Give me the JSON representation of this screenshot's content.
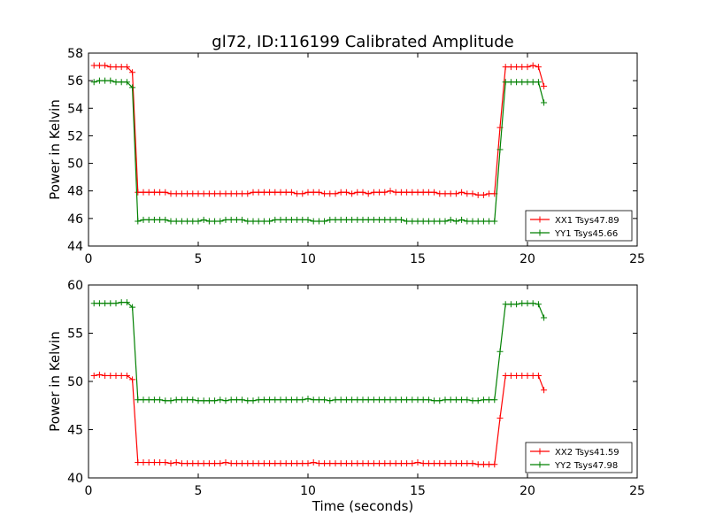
{
  "chart_data": [
    {
      "type": "line",
      "title": "gl72, ID:116199 Calibrated Amplitude",
      "xlabel": "",
      "ylabel": "Power in Kelvin",
      "xlim": [
        0,
        25
      ],
      "ylim": [
        44,
        58
      ],
      "xticks": [
        "0",
        "5",
        "10",
        "15",
        "20",
        "25"
      ],
      "yticks": [
        "44",
        "46",
        "48",
        "50",
        "52",
        "54",
        "56",
        "58"
      ],
      "legend_position": "lower-right",
      "grid": false,
      "x": [
        0.25,
        0.5,
        0.75,
        1.0,
        1.25,
        1.5,
        1.75,
        2.0,
        2.25,
        2.5,
        2.75,
        3.0,
        3.25,
        3.5,
        3.75,
        4.0,
        4.25,
        4.5,
        4.75,
        5.0,
        5.25,
        5.5,
        5.75,
        6.0,
        6.25,
        6.5,
        6.75,
        7.0,
        7.25,
        7.5,
        7.75,
        8.0,
        8.25,
        8.5,
        8.75,
        9.0,
        9.25,
        9.5,
        9.75,
        10.0,
        10.25,
        10.5,
        10.75,
        11.0,
        11.25,
        11.5,
        11.75,
        12.0,
        12.25,
        12.5,
        12.75,
        13.0,
        13.25,
        13.5,
        13.75,
        14.0,
        14.25,
        14.5,
        14.75,
        15.0,
        15.25,
        15.5,
        15.75,
        16.0,
        16.25,
        16.5,
        16.75,
        17.0,
        17.25,
        17.5,
        17.75,
        18.0,
        18.25,
        18.5,
        18.75,
        19.0,
        19.25,
        19.5,
        19.75,
        20.0,
        20.25,
        20.5,
        20.75
      ],
      "series": [
        {
          "name": "XX1 Tsys47.89",
          "color": "#ff0000",
          "values": [
            57.1,
            57.1,
            57.1,
            57.0,
            57.0,
            57.0,
            57.0,
            56.6,
            47.9,
            47.9,
            47.9,
            47.9,
            47.9,
            47.9,
            47.8,
            47.8,
            47.8,
            47.8,
            47.8,
            47.8,
            47.8,
            47.8,
            47.8,
            47.8,
            47.8,
            47.8,
            47.8,
            47.8,
            47.8,
            47.9,
            47.9,
            47.9,
            47.9,
            47.9,
            47.9,
            47.9,
            47.9,
            47.8,
            47.8,
            47.9,
            47.9,
            47.9,
            47.8,
            47.8,
            47.8,
            47.9,
            47.9,
            47.8,
            47.9,
            47.9,
            47.8,
            47.9,
            47.9,
            47.9,
            48.0,
            47.9,
            47.9,
            47.9,
            47.9,
            47.9,
            47.9,
            47.9,
            47.9,
            47.8,
            47.8,
            47.8,
            47.8,
            47.9,
            47.8,
            47.8,
            47.7,
            47.7,
            47.8,
            47.8,
            52.6,
            57.0,
            57.0,
            57.0,
            57.0,
            57.0,
            57.1,
            57.0,
            55.6
          ]
        },
        {
          "name": "YY1 Tsys45.66",
          "color": "#008000",
          "values": [
            55.9,
            56.0,
            56.0,
            56.0,
            55.9,
            55.9,
            55.9,
            55.5,
            45.8,
            45.9,
            45.9,
            45.9,
            45.9,
            45.9,
            45.8,
            45.8,
            45.8,
            45.8,
            45.8,
            45.8,
            45.9,
            45.8,
            45.8,
            45.8,
            45.9,
            45.9,
            45.9,
            45.9,
            45.8,
            45.8,
            45.8,
            45.8,
            45.8,
            45.9,
            45.9,
            45.9,
            45.9,
            45.9,
            45.9,
            45.9,
            45.8,
            45.8,
            45.8,
            45.9,
            45.9,
            45.9,
            45.9,
            45.9,
            45.9,
            45.9,
            45.9,
            45.9,
            45.9,
            45.9,
            45.9,
            45.9,
            45.9,
            45.8,
            45.8,
            45.8,
            45.8,
            45.8,
            45.8,
            45.8,
            45.8,
            45.9,
            45.8,
            45.9,
            45.8,
            45.8,
            45.8,
            45.8,
            45.8,
            45.8,
            51.0,
            55.9,
            55.9,
            55.9,
            55.9,
            55.9,
            55.9,
            55.9,
            54.4
          ]
        }
      ]
    },
    {
      "type": "line",
      "title": "",
      "xlabel": "Time (seconds)",
      "ylabel": "Power in Kelvin",
      "xlim": [
        0,
        25
      ],
      "ylim": [
        40,
        60
      ],
      "xticks": [
        "0",
        "5",
        "10",
        "15",
        "20",
        "25"
      ],
      "yticks": [
        "40",
        "45",
        "50",
        "55",
        "60"
      ],
      "legend_position": "lower-right",
      "grid": false,
      "x": [
        0.25,
        0.5,
        0.75,
        1.0,
        1.25,
        1.5,
        1.75,
        2.0,
        2.25,
        2.5,
        2.75,
        3.0,
        3.25,
        3.5,
        3.75,
        4.0,
        4.25,
        4.5,
        4.75,
        5.0,
        5.25,
        5.5,
        5.75,
        6.0,
        6.25,
        6.5,
        6.75,
        7.0,
        7.25,
        7.5,
        7.75,
        8.0,
        8.25,
        8.5,
        8.75,
        9.0,
        9.25,
        9.5,
        9.75,
        10.0,
        10.25,
        10.5,
        10.75,
        11.0,
        11.25,
        11.5,
        11.75,
        12.0,
        12.25,
        12.5,
        12.75,
        13.0,
        13.25,
        13.5,
        13.75,
        14.0,
        14.25,
        14.5,
        14.75,
        15.0,
        15.25,
        15.5,
        15.75,
        16.0,
        16.25,
        16.5,
        16.75,
        17.0,
        17.25,
        17.5,
        17.75,
        18.0,
        18.25,
        18.5,
        18.75,
        19.0,
        19.25,
        19.5,
        19.75,
        20.0,
        20.25,
        20.5,
        20.75
      ],
      "series": [
        {
          "name": "XX2 Tsys41.59",
          "color": "#ff0000",
          "values": [
            50.6,
            50.7,
            50.6,
            50.6,
            50.6,
            50.6,
            50.6,
            50.2,
            41.6,
            41.6,
            41.6,
            41.6,
            41.6,
            41.6,
            41.5,
            41.6,
            41.5,
            41.5,
            41.5,
            41.5,
            41.5,
            41.5,
            41.5,
            41.5,
            41.6,
            41.5,
            41.5,
            41.5,
            41.5,
            41.5,
            41.5,
            41.5,
            41.5,
            41.5,
            41.5,
            41.5,
            41.5,
            41.5,
            41.5,
            41.5,
            41.6,
            41.5,
            41.5,
            41.5,
            41.5,
            41.5,
            41.5,
            41.5,
            41.5,
            41.5,
            41.5,
            41.5,
            41.5,
            41.5,
            41.5,
            41.5,
            41.5,
            41.5,
            41.5,
            41.6,
            41.5,
            41.5,
            41.5,
            41.5,
            41.5,
            41.5,
            41.5,
            41.5,
            41.5,
            41.5,
            41.4,
            41.4,
            41.4,
            41.4,
            46.2,
            50.6,
            50.6,
            50.6,
            50.6,
            50.6,
            50.6,
            50.6,
            49.1
          ]
        },
        {
          "name": "YY2 Tsys47.98",
          "color": "#008000",
          "values": [
            58.1,
            58.1,
            58.1,
            58.1,
            58.1,
            58.2,
            58.2,
            57.7,
            48.1,
            48.1,
            48.1,
            48.1,
            48.1,
            48.0,
            48.0,
            48.1,
            48.1,
            48.1,
            48.1,
            48.0,
            48.0,
            48.0,
            48.0,
            48.1,
            48.0,
            48.1,
            48.1,
            48.1,
            48.0,
            48.0,
            48.1,
            48.1,
            48.1,
            48.1,
            48.1,
            48.1,
            48.1,
            48.1,
            48.1,
            48.2,
            48.1,
            48.1,
            48.1,
            48.0,
            48.1,
            48.1,
            48.1,
            48.1,
            48.1,
            48.1,
            48.1,
            48.1,
            48.1,
            48.1,
            48.1,
            48.1,
            48.1,
            48.1,
            48.1,
            48.1,
            48.1,
            48.1,
            48.0,
            48.0,
            48.1,
            48.1,
            48.1,
            48.1,
            48.1,
            48.0,
            48.0,
            48.1,
            48.1,
            48.1,
            53.1,
            58.0,
            58.0,
            58.0,
            58.1,
            58.1,
            58.1,
            58.0,
            56.6
          ]
        }
      ]
    }
  ]
}
